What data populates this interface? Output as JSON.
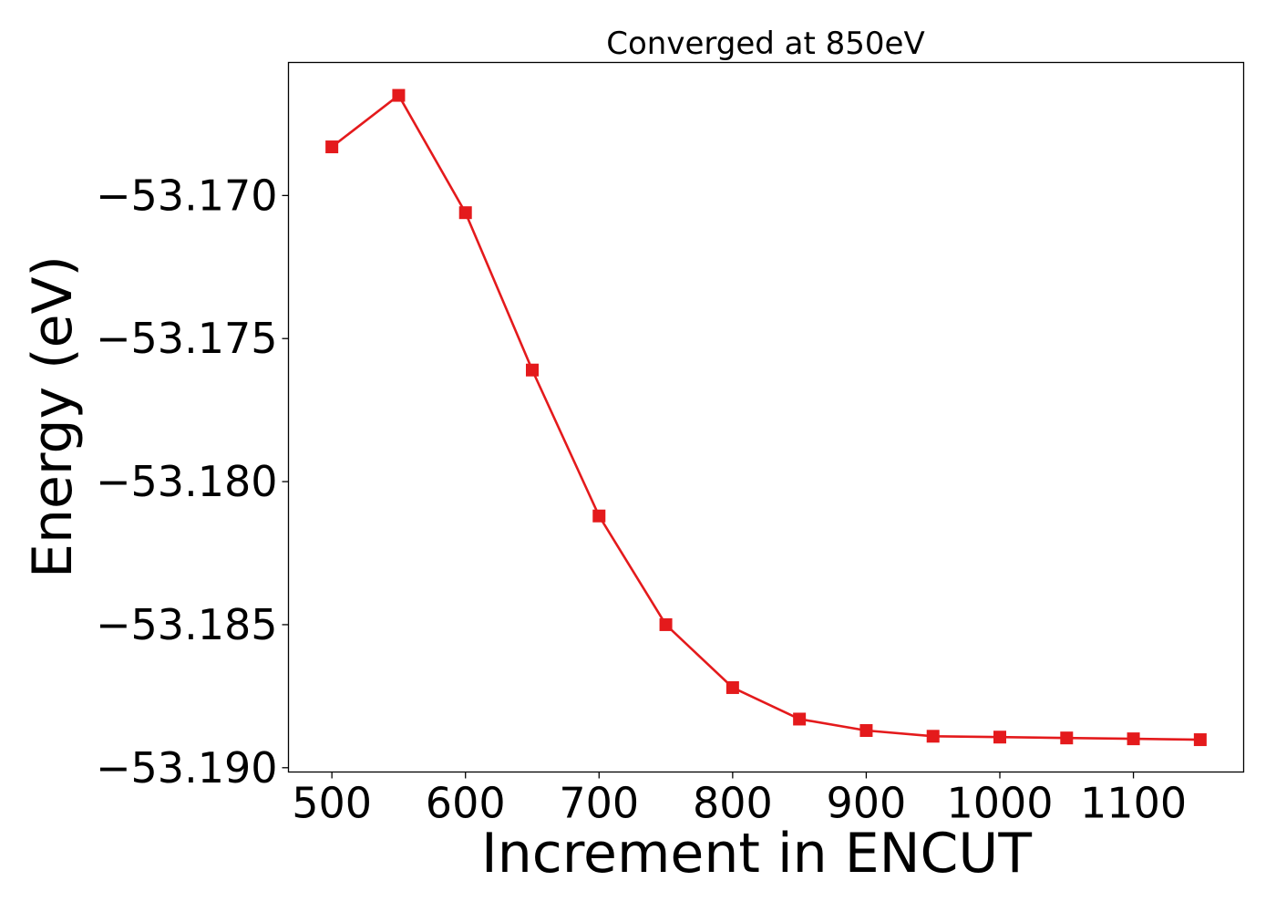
{
  "chart_data": {
    "type": "line",
    "title": "Converged at 850eV",
    "xlabel": "Increment in ENCUT",
    "ylabel": "Energy (eV)",
    "x": [
      500,
      550,
      600,
      650,
      700,
      750,
      800,
      850,
      900,
      950,
      1000,
      1050,
      1100,
      1150
    ],
    "series": [
      {
        "color": "#e41a1c",
        "marker": "square",
        "values": [
          -53.1683,
          -53.1665,
          -53.1706,
          -53.1761,
          -53.1812,
          -53.185,
          -53.1872,
          -53.1883,
          -53.1887,
          -53.1889,
          -53.18893,
          -53.18896,
          -53.18899,
          -53.18902
        ]
      }
    ],
    "xlim": [
      467.5,
      1182.5
    ],
    "ylim": [
      -53.19015,
      -53.16535
    ],
    "xticks": [
      500,
      600,
      700,
      800,
      900,
      1000,
      1100
    ],
    "yticks": [
      -53.19,
      -53.185,
      -53.18,
      -53.175,
      -53.17
    ],
    "ytick_labels": [
      "−53.190",
      "−53.185",
      "−53.180",
      "−53.175",
      "−53.170"
    ],
    "grid": false,
    "legend": "none"
  }
}
